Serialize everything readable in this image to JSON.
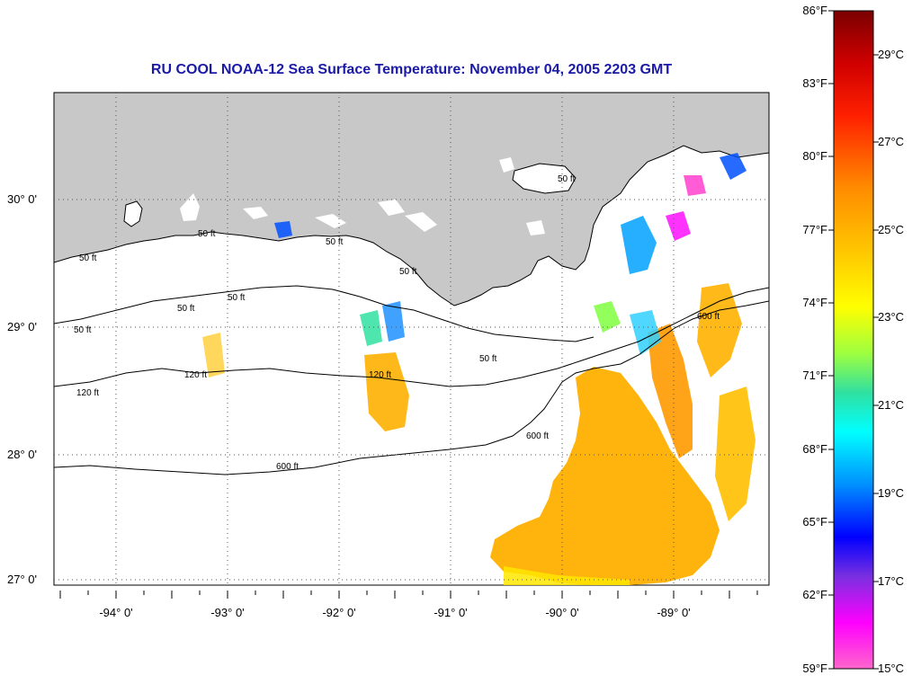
{
  "title": "RU COOL  NOAA-12  Sea Surface Temperature:  November 04, 2005 2203 GMT",
  "latitude_labels": [
    "30° 0'",
    "29° 0'",
    "28° 0'",
    "27° 0'"
  ],
  "longitude_labels": [
    "-94° 0'",
    "-93° 0'",
    "-92° 0'",
    "-91° 0'",
    "-90° 0'",
    "-89° 0'"
  ],
  "isobath_labels": [
    "50 ft",
    "50 ft",
    "50 ft",
    "50 ft",
    "50 ft",
    "50 ft",
    "50 ft",
    "50 ft",
    "50 ft",
    "120 ft",
    "120 ft",
    "120 ft",
    "600 ft",
    "600 ft",
    "600 ft"
  ],
  "colorbar": {
    "fahrenheit_labels": [
      "86°F",
      "83°F",
      "80°F",
      "77°F",
      "74°F",
      "71°F",
      "68°F",
      "65°F",
      "62°F",
      "59°F"
    ],
    "celsius_labels": [
      "29°C",
      "27°C",
      "25°C",
      "23°C",
      "21°C",
      "19°C",
      "17°C",
      "15°C"
    ],
    "colors": [
      "#8b0000",
      "#ff0000",
      "#ff8c00",
      "#ffd700",
      "#ffff00",
      "#7fff00",
      "#00d090",
      "#00ffff",
      "#0080ff",
      "#0000ff",
      "#8a2be2",
      "#ff00ff",
      "#ff66cc"
    ]
  },
  "colors": {
    "land": "#c8c8c8",
    "title": "#1a1aa6",
    "warm_sst": "#ffb000"
  }
}
